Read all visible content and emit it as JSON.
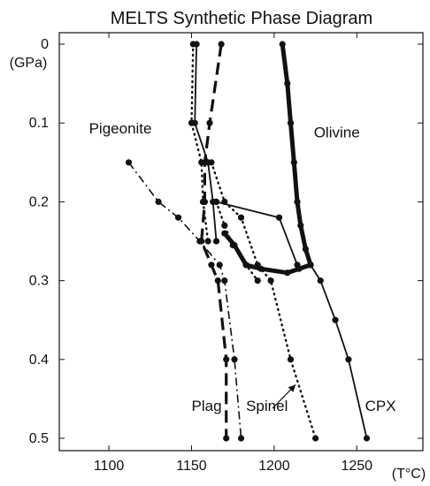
{
  "chart_data": {
    "type": "line",
    "title": "MELTS Synthetic Phase Diagram",
    "xlabel": "(T°C)",
    "ylabel": "(GPa)",
    "xlim": [
      1070,
      1290
    ],
    "ylim": [
      0,
      0.5
    ],
    "y_inverted": true,
    "xticks": [
      1100,
      1150,
      1200,
      1250
    ],
    "yticks": [
      0,
      0.1,
      0.2,
      0.3,
      0.4,
      0.5
    ],
    "xtick_labels": [
      "1100",
      "1150",
      "1200",
      "1250"
    ],
    "ytick_labels": [
      "0",
      "0.1",
      "0.2",
      "0.3",
      "0.4",
      "0.5"
    ],
    "grid": false,
    "series": [
      {
        "name": "Olivine",
        "style": "thick-solid",
        "points": [
          [
            1205,
            0
          ],
          [
            1208,
            0.05
          ],
          [
            1210,
            0.1
          ],
          [
            1212,
            0.15
          ],
          [
            1214,
            0.2
          ],
          [
            1216,
            0.23
          ],
          [
            1219,
            0.26
          ],
          [
            1222,
            0.28
          ]
        ]
      },
      {
        "name": "CPX",
        "style": "solid",
        "points": [
          [
            1222,
            0.28
          ],
          [
            1228,
            0.3
          ],
          [
            1237,
            0.35
          ],
          [
            1245,
            0.4
          ],
          [
            1256,
            0.5
          ]
        ]
      },
      {
        "name": "Plag",
        "style": "dashed",
        "points": [
          [
            1168,
            0
          ],
          [
            1161,
            0.1
          ],
          [
            1158,
            0.15
          ],
          [
            1158,
            0.2
          ],
          [
            1156,
            0.25
          ],
          [
            1162,
            0.28
          ],
          [
            1166,
            0.3
          ],
          [
            1171,
            0.4
          ],
          [
            1171,
            0.5
          ]
        ]
      },
      {
        "name": "Spinel",
        "style": "dotted",
        "points": [
          [
            1162,
            0.15
          ],
          [
            1170,
            0.2
          ],
          [
            1180,
            0.22
          ],
          [
            1190,
            0.28
          ],
          [
            1198,
            0.3
          ],
          [
            1210,
            0.4
          ],
          [
            1225,
            0.5
          ]
        ]
      },
      {
        "name": "Pigeonite",
        "style": "dash-dot",
        "points": [
          [
            1112,
            0.15
          ],
          [
            1130,
            0.2
          ],
          [
            1142,
            0.22
          ],
          [
            1155,
            0.25
          ],
          [
            1167,
            0.28
          ],
          [
            1170,
            0.3
          ],
          [
            1176,
            0.4
          ],
          [
            1180,
            0.5
          ]
        ]
      },
      {
        "name": "",
        "style": "dotted",
        "points": [
          [
            1151,
            0
          ],
          [
            1150,
            0.1
          ],
          [
            1156,
            0.15
          ],
          [
            1157,
            0.2
          ],
          [
            1160,
            0.25
          ]
        ]
      },
      {
        "name": "",
        "style": "solid",
        "points": [
          [
            1153,
            0
          ],
          [
            1152,
            0.1
          ],
          [
            1160,
            0.15
          ],
          [
            1163,
            0.2
          ],
          [
            1165,
            0.25
          ]
        ]
      },
      {
        "name": "",
        "style": "solid",
        "points": [
          [
            1165,
            0.2
          ],
          [
            1203,
            0.22
          ],
          [
            1214,
            0.28
          ]
        ]
      },
      {
        "name": "",
        "style": "dotted",
        "points": [
          [
            1165,
            0.2
          ],
          [
            1170,
            0.23
          ],
          [
            1175,
            0.255
          ],
          [
            1183,
            0.28
          ],
          [
            1190,
            0.3
          ]
        ]
      },
      {
        "name": "",
        "style": "thick-solid",
        "points": [
          [
            1170,
            0.24
          ],
          [
            1176,
            0.255
          ],
          [
            1183,
            0.28
          ],
          [
            1192,
            0.285
          ],
          [
            1208,
            0.29
          ],
          [
            1215,
            0.285
          ],
          [
            1222,
            0.28
          ]
        ]
      }
    ],
    "annotations": [
      {
        "text": "Pigeonite",
        "x": 1088,
        "y": 0.113
      },
      {
        "text": "Olivine",
        "x": 1224,
        "y": 0.118
      },
      {
        "text": "Plag",
        "x": 1150,
        "y": 0.465
      },
      {
        "text": "Spinel",
        "x": 1183,
        "y": 0.465
      },
      {
        "text": "CPX",
        "x": 1255,
        "y": 0.465
      }
    ]
  }
}
